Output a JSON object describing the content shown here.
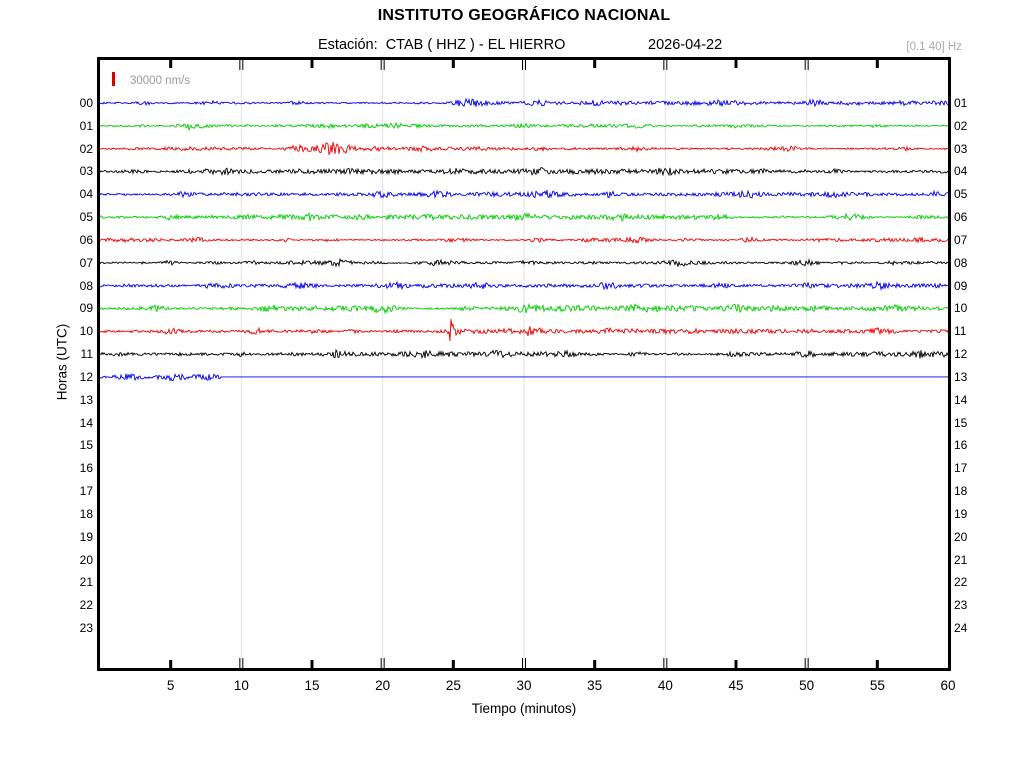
{
  "header": {
    "title": "INSTITUTO GEOGRÁFICO NACIONAL",
    "station_label": "Estación:  CTAB ( HHZ ) - EL HIERRO",
    "date": "2026-04-22",
    "filter": "[0.1 40] Hz"
  },
  "scale_bar": {
    "label": "30000 nm/s"
  },
  "axes": {
    "x_label": "Tiempo (minutos)",
    "y_label": "Horas (UTC)",
    "x_ticks": [
      5,
      10,
      15,
      20,
      25,
      30,
      35,
      40,
      45,
      50,
      55,
      60
    ],
    "x_range": [
      0,
      60
    ],
    "grid_every_minutes": 10,
    "hour_labels_left": [
      "00",
      "01",
      "02",
      "03",
      "04",
      "05",
      "06",
      "07",
      "08",
      "09",
      "10",
      "11",
      "12",
      "13",
      "14",
      "15",
      "16",
      "17",
      "18",
      "19",
      "20",
      "21",
      "22",
      "23"
    ],
    "hour_labels_right": [
      "01",
      "02",
      "03",
      "04",
      "05",
      "06",
      "07",
      "08",
      "09",
      "10",
      "11",
      "12",
      "13",
      "14",
      "15",
      "16",
      "17",
      "18",
      "19",
      "20",
      "21",
      "22",
      "23",
      "24"
    ]
  },
  "colors": {
    "blue": "#0000EE",
    "green": "#00CC00",
    "red": "#EE0000",
    "black": "#000000",
    "grid": "#E2E2E2",
    "frame": "#000000",
    "scale_marker": "#DD0000",
    "muted_text": "#9A9A9A"
  },
  "chart_data": {
    "type": "line",
    "subtype": "helicorder-seismogram",
    "title": "INSTITUTO GEOGRÁFICO NACIONAL — Estación CTAB (HHZ) - EL HIERRO — 2026-04-22",
    "xlabel": "Tiempo (minutos)",
    "ylabel": "Horas (UTC)",
    "x_range_minutes": [
      0,
      60
    ],
    "hours_plotted": "00 through 12 UTC have recorded traces; trace 12 stops at minute 8.5 then runs flat; hours 13-23 are empty",
    "color_cycle_by_hour": [
      "blue",
      "green",
      "red",
      "black"
    ],
    "traces": [
      {
        "hour": 0,
        "color": "blue",
        "base_amp": 1.1,
        "end_minute": 60,
        "seed": 101,
        "bursts": [
          [
            3,
            1.5,
            0.4
          ],
          [
            8,
            1.2,
            0.5
          ],
          [
            14,
            1.2,
            0.4
          ],
          [
            26,
            3.2,
            0.7
          ],
          [
            31,
            1.3,
            0.4
          ],
          [
            35,
            1.4,
            0.4
          ],
          [
            44,
            1.5,
            0.3
          ],
          [
            50.5,
            2.2,
            0.6
          ],
          [
            53,
            1.8,
            0.5
          ],
          [
            57,
            1.5,
            0.4
          ]
        ]
      },
      {
        "hour": 1,
        "color": "green",
        "base_amp": 1.0,
        "end_minute": 60,
        "seed": 202,
        "bursts": [
          [
            6.3,
            4.5,
            0.12
          ],
          [
            6.8,
            1.5,
            0.5
          ],
          [
            16,
            1.2,
            0.4
          ],
          [
            21,
            1.3,
            0.4
          ],
          [
            30,
            1.5,
            0.5
          ],
          [
            38,
            1.2,
            0.4
          ],
          [
            45,
            1.3,
            0.4
          ],
          [
            55,
            1.2,
            0.4
          ]
        ]
      },
      {
        "hour": 2,
        "color": "red",
        "base_amp": 1.1,
        "end_minute": 60,
        "seed": 303,
        "bursts": [
          [
            5,
            1.2,
            0.4
          ],
          [
            14,
            1.8,
            0.5
          ],
          [
            16.5,
            4.5,
            0.8
          ],
          [
            23,
            1.4,
            0.4
          ],
          [
            31,
            1.3,
            0.5
          ],
          [
            38,
            1.4,
            0.4
          ],
          [
            49,
            1.5,
            0.3
          ],
          [
            57,
            1.2,
            0.3
          ]
        ]
      },
      {
        "hour": 3,
        "color": "black",
        "base_amp": 1.2,
        "end_minute": 60,
        "seed": 404,
        "bursts": [
          [
            9,
            1.2,
            0.5
          ],
          [
            18,
            1.3,
            0.4
          ],
          [
            25,
            1.4,
            0.5
          ],
          [
            31,
            1.8,
            0.6
          ],
          [
            40,
            1.4,
            0.5
          ],
          [
            47,
            1.3,
            0.4
          ],
          [
            52,
            1.4,
            0.4
          ]
        ]
      },
      {
        "hour": 4,
        "color": "blue",
        "base_amp": 1.1,
        "end_minute": 60,
        "seed": 505,
        "bursts": [
          [
            6,
            1.3,
            0.4
          ],
          [
            20,
            1.8,
            0.5
          ],
          [
            24,
            2.2,
            0.6
          ],
          [
            31.5,
            2.6,
            0.7
          ],
          [
            36,
            1.5,
            0.4
          ],
          [
            46,
            1.8,
            0.5
          ],
          [
            52,
            1.4,
            0.4
          ],
          [
            59,
            1.8,
            0.3
          ]
        ]
      },
      {
        "hour": 5,
        "color": "green",
        "base_amp": 1.2,
        "end_minute": 60,
        "seed": 606,
        "bursts": [
          [
            5,
            1.4,
            0.5
          ],
          [
            15,
            1.8,
            0.5
          ],
          [
            23,
            1.4,
            0.4
          ],
          [
            30,
            2,
            0.6
          ],
          [
            37,
            1.5,
            0.4
          ],
          [
            44,
            1.8,
            0.5
          ],
          [
            53,
            2.2,
            0.8
          ],
          [
            58,
            1.6,
            0.4
          ]
        ]
      },
      {
        "hour": 6,
        "color": "red",
        "base_amp": 1.2,
        "end_minute": 60,
        "seed": 707,
        "bursts": [
          [
            7,
            1.4,
            0.4
          ],
          [
            13,
            1.3,
            0.4
          ],
          [
            25,
            1.8,
            0.5
          ],
          [
            31,
            1.5,
            0.4
          ],
          [
            38,
            1.8,
            0.5
          ],
          [
            46,
            1.4,
            0.4
          ],
          [
            58,
            1.8,
            0.4
          ]
        ]
      },
      {
        "hour": 7,
        "color": "black",
        "base_amp": 1.2,
        "end_minute": 60,
        "seed": 808,
        "bursts": [
          [
            5,
            1.3,
            0.4
          ],
          [
            11,
            1.4,
            0.5
          ],
          [
            17,
            2,
            0.5
          ],
          [
            24,
            1.5,
            0.4
          ],
          [
            30,
            1.8,
            0.5
          ],
          [
            41,
            1.8,
            0.4
          ],
          [
            50,
            2.2,
            0.6
          ],
          [
            56,
            1.5,
            0.4
          ]
        ]
      },
      {
        "hour": 8,
        "color": "blue",
        "base_amp": 1.2,
        "end_minute": 60,
        "seed": 909,
        "bursts": [
          [
            8,
            1.8,
            0.5
          ],
          [
            14,
            2.2,
            0.6
          ],
          [
            21,
            1.5,
            0.4
          ],
          [
            27,
            2.2,
            0.6
          ],
          [
            36,
            1.8,
            0.4
          ],
          [
            44,
            1.8,
            0.5
          ],
          [
            50,
            1.4,
            0.4
          ],
          [
            55,
            1.5,
            0.4
          ]
        ]
      },
      {
        "hour": 9,
        "color": "green",
        "base_amp": 1.4,
        "end_minute": 60,
        "seed": 1010,
        "bursts": [
          [
            4,
            1.8,
            0.5
          ],
          [
            12,
            2.6,
            0.7
          ],
          [
            20,
            2.2,
            0.5
          ],
          [
            26,
            1.8,
            0.4
          ],
          [
            30,
            2.2,
            0.6
          ],
          [
            38,
            1.8,
            0.5
          ],
          [
            45,
            2.2,
            0.6
          ],
          [
            51,
            1.8,
            0.4
          ],
          [
            56,
            1.8,
            0.4
          ]
        ]
      },
      {
        "hour": 10,
        "color": "red",
        "base_amp": 1.2,
        "end_minute": 60,
        "seed": 1111,
        "bursts": [
          [
            5,
            1.3,
            0.4
          ],
          [
            11,
            1.5,
            0.4
          ],
          [
            18,
            1.4,
            0.4
          ],
          [
            24.8,
            9,
            0.12
          ],
          [
            25,
            3,
            0.35
          ],
          [
            30.5,
            2.8,
            0.5
          ],
          [
            36,
            1.5,
            0.4
          ],
          [
            42,
            1.5,
            0.4
          ],
          [
            50,
            1.3,
            0.4
          ],
          [
            55,
            1.5,
            0.5
          ]
        ]
      },
      {
        "hour": 11,
        "color": "black",
        "base_amp": 1.3,
        "end_minute": 60,
        "seed": 1212,
        "bursts": [
          [
            6,
            1.4,
            0.4
          ],
          [
            10,
            1.8,
            0.4
          ],
          [
            17,
            2.4,
            0.4
          ],
          [
            23,
            1.4,
            0.4
          ],
          [
            28,
            1.5,
            0.4
          ],
          [
            33,
            1.6,
            0.4
          ],
          [
            38,
            1.8,
            0.5
          ],
          [
            45,
            1.4,
            0.4
          ],
          [
            50,
            1.8,
            0.5
          ],
          [
            58,
            1.5,
            0.3
          ]
        ]
      },
      {
        "hour": 12,
        "color": "blue",
        "base_amp": 1.2,
        "end_minute": 8.5,
        "flat_line_to": 60,
        "seed": 1313,
        "bursts": [
          [
            2,
            1.5,
            0.5
          ],
          [
            5,
            1.8,
            0.6
          ],
          [
            7.5,
            1.8,
            0.4
          ]
        ]
      }
    ]
  }
}
